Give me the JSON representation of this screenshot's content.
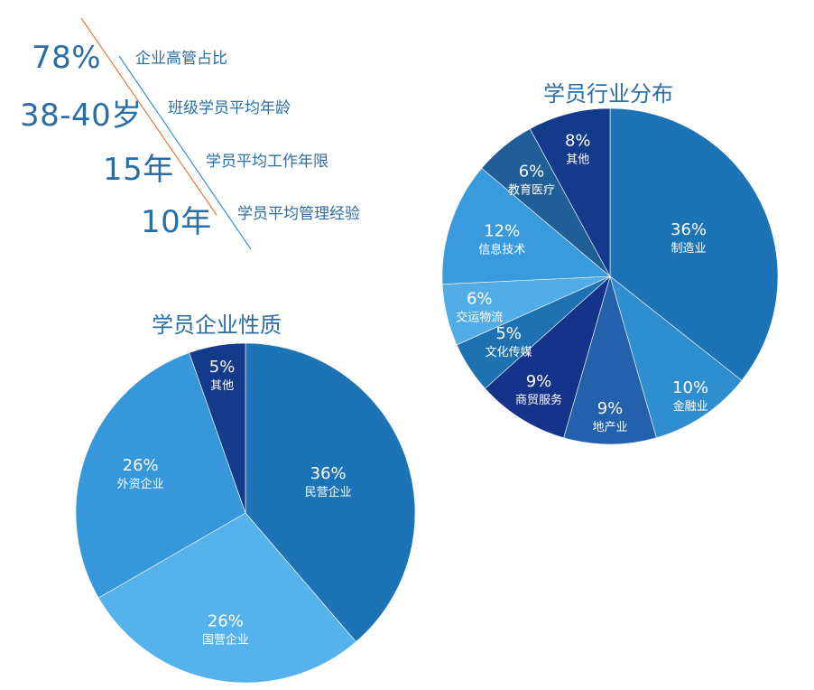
{
  "stats": [
    {
      "value": "78%",
      "label": "企业高管占比"
    },
    {
      "value": "38-40岁",
      "label": "班级学员平均年龄"
    },
    {
      "value": "15年",
      "label": "学员平均工作年限"
    },
    {
      "value": "10年",
      "label": "学员平均管理经验"
    }
  ],
  "chart_data": [
    {
      "type": "pie",
      "title": "学员行业分布",
      "slices": [
        {
          "label": "制造业",
          "value": 36,
          "value_text": "36%",
          "color": "#1c74b6"
        },
        {
          "label": "金融业",
          "value": 10,
          "value_text": "10%",
          "color": "#2f8ed0"
        },
        {
          "label": "地产业",
          "value": 9,
          "value_text": "9%",
          "color": "#2360ad"
        },
        {
          "label": "商贸服务",
          "value": 9,
          "value_text": "9%",
          "color": "#15338a"
        },
        {
          "label": "文化传媒",
          "value": 5,
          "value_text": "5%",
          "color": "#1f72b2"
        },
        {
          "label": "交运物流",
          "value": 6,
          "value_text": "6%",
          "color": "#52ade6"
        },
        {
          "label": "信息技术",
          "value": 12,
          "value_text": "12%",
          "color": "#3a9ade"
        },
        {
          "label": "教育医疗",
          "value": 6,
          "value_text": "6%",
          "color": "#1f5e96"
        },
        {
          "label": "其他",
          "value": 8,
          "value_text": "8%",
          "color": "#143a8c"
        }
      ]
    },
    {
      "type": "pie",
      "title": "学员企业性质",
      "slices": [
        {
          "label": "民营企业",
          "value": 36,
          "value_text": "36%",
          "color": "#1c74b6"
        },
        {
          "label": "国营企业",
          "value": 26,
          "value_text": "26%",
          "color": "#55b2ea"
        },
        {
          "label": "外资企业",
          "value": 26,
          "value_text": "26%",
          "color": "#3697da"
        },
        {
          "label": "其他",
          "value": 5,
          "value_text": "5%",
          "color": "#143a8c"
        }
      ]
    }
  ]
}
